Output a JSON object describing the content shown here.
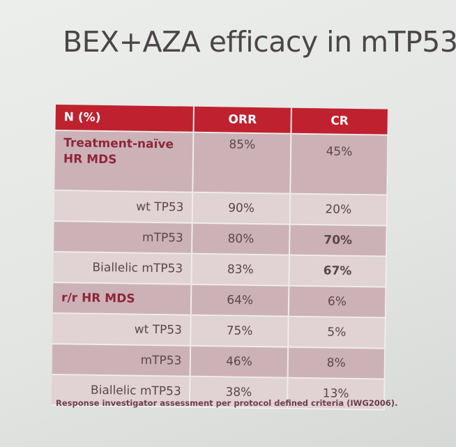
{
  "title": "BEX+AZA efficacy in mTP53",
  "table": {
    "headers": [
      "N (%)",
      "ORR",
      "CR"
    ],
    "rows": [
      {
        "label": "Treatment-naïve HR MDS",
        "orr": "85%",
        "cr": "45%",
        "group": true,
        "cr_bold": false
      },
      {
        "label": "wt TP53",
        "orr": "90%",
        "cr": "20%",
        "group": false,
        "cr_bold": false
      },
      {
        "label": "mTP53",
        "orr": "80%",
        "cr": "70%",
        "group": false,
        "cr_bold": true
      },
      {
        "label": "Biallelic mTP53",
        "orr": "83%",
        "cr": "67%",
        "group": false,
        "cr_bold": true
      },
      {
        "label": "r/r HR MDS",
        "orr": "64%",
        "cr": "6%",
        "group": true,
        "cr_bold": false
      },
      {
        "label": "wt TP53",
        "orr": "75%",
        "cr": "5%",
        "group": false,
        "cr_bold": false
      },
      {
        "label": "mTP53",
        "orr": "46%",
        "cr": "8%",
        "group": false,
        "cr_bold": false
      },
      {
        "label": "Biallelic mTP53",
        "orr": "38%",
        "cr": "13%",
        "group": false,
        "cr_bold": false
      }
    ]
  },
  "footnote": "Response investigator assessment per protocol defined criteria (IWG2006).",
  "colors": {
    "header": "#c0212f",
    "row_dark": "#ccb2b7",
    "row_light": "#e1d2d4",
    "group_text": "#8e2638"
  }
}
